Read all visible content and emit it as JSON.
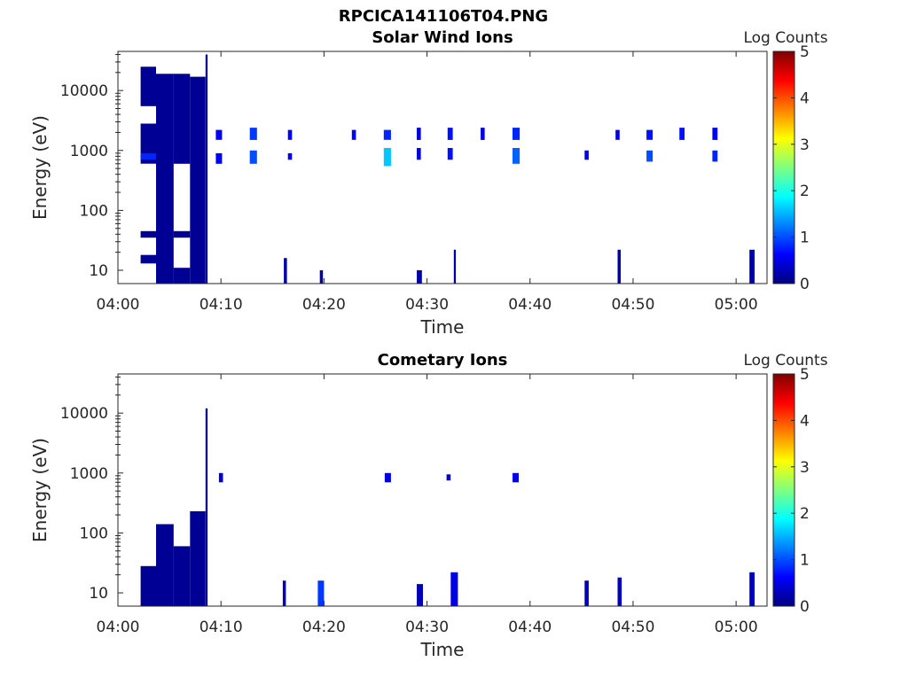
{
  "figure": {
    "suptitle": "RPCICA141106T04.PNG"
  },
  "chart_data": [
    {
      "type": "heatmap",
      "title": "Solar Wind Ions",
      "xlabel": "Time",
      "ylabel": "Energy (eV)",
      "yscale": "log",
      "ylim": [
        6,
        45000
      ],
      "xlim_minutes": [
        0,
        63
      ],
      "xticks": [
        "04:00",
        "04:10",
        "04:20",
        "04:30",
        "04:40",
        "04:50",
        "05:00"
      ],
      "yticks": [
        "10",
        "100",
        "1000",
        "10000"
      ],
      "ytick_values": [
        10,
        100,
        1000,
        10000
      ],
      "colorbar": {
        "label": "Log Counts",
        "range": [
          0,
          5
        ],
        "ticks": [
          "0",
          "1",
          "2",
          "3",
          "4",
          "5"
        ],
        "colormap": "jet"
      },
      "grid": false,
      "blocks": [
        {
          "t0": 2.2,
          "t1": 3.7,
          "e0": 5500,
          "e1": 25000,
          "level": 0.1
        },
        {
          "t0": 2.2,
          "t1": 3.7,
          "e0": 600,
          "e1": 2800,
          "level": 0.1
        },
        {
          "t0": 2.2,
          "t1": 3.7,
          "e0": 35,
          "e1": 45,
          "level": 0.1
        },
        {
          "t0": 2.2,
          "t1": 3.7,
          "e0": 13,
          "e1": 18,
          "level": 0.1
        },
        {
          "t0": 2.2,
          "t1": 3.7,
          "e0": 700,
          "e1": 900,
          "level": 0.8
        },
        {
          "t0": 3.7,
          "t1": 5.4,
          "e0": 6,
          "e1": 19000,
          "level": 0.1
        },
        {
          "t0": 5.4,
          "t1": 7.0,
          "e0": 6,
          "e1": 11,
          "level": 0.1
        },
        {
          "t0": 5.4,
          "t1": 7.0,
          "e0": 35,
          "e1": 45,
          "level": 0.1
        },
        {
          "t0": 5.4,
          "t1": 7.0,
          "e0": 600,
          "e1": 19000,
          "level": 0.1
        },
        {
          "t0": 7.0,
          "t1": 8.5,
          "e0": 6,
          "e1": 17000,
          "level": 0.1
        },
        {
          "t0": 8.5,
          "t1": 8.7,
          "e0": 6,
          "e1": 40000,
          "level": 0.1
        },
        {
          "t0": 9.5,
          "t1": 10.1,
          "e0": 1500,
          "e1": 2200,
          "level": 0.6
        },
        {
          "t0": 9.5,
          "t1": 10.1,
          "e0": 600,
          "e1": 900,
          "level": 0.6
        },
        {
          "t0": 12.8,
          "t1": 13.5,
          "e0": 1500,
          "e1": 2400,
          "level": 0.9
        },
        {
          "t0": 12.8,
          "t1": 13.5,
          "e0": 600,
          "e1": 1000,
          "level": 1.0
        },
        {
          "t0": 16.5,
          "t1": 16.9,
          "e0": 1500,
          "e1": 2200,
          "level": 0.6
        },
        {
          "t0": 16.5,
          "t1": 16.9,
          "e0": 700,
          "e1": 900,
          "level": 0.6
        },
        {
          "t0": 22.7,
          "t1": 23.1,
          "e0": 1500,
          "e1": 2200,
          "level": 0.6
        },
        {
          "t0": 25.8,
          "t1": 26.5,
          "e0": 1500,
          "e1": 2200,
          "level": 0.8
        },
        {
          "t0": 25.8,
          "t1": 26.5,
          "e0": 550,
          "e1": 1100,
          "level": 1.6
        },
        {
          "t0": 29.0,
          "t1": 29.4,
          "e0": 1500,
          "e1": 2400,
          "level": 0.5
        },
        {
          "t0": 29.0,
          "t1": 29.4,
          "e0": 700,
          "e1": 1100,
          "level": 0.5
        },
        {
          "t0": 32.0,
          "t1": 32.5,
          "e0": 1500,
          "e1": 2400,
          "level": 0.7
        },
        {
          "t0": 32.0,
          "t1": 32.5,
          "e0": 700,
          "e1": 1100,
          "level": 0.7
        },
        {
          "t0": 35.2,
          "t1": 35.6,
          "e0": 1500,
          "e1": 2400,
          "level": 0.5
        },
        {
          "t0": 38.3,
          "t1": 39.0,
          "e0": 1500,
          "e1": 2400,
          "level": 0.8
        },
        {
          "t0": 38.3,
          "t1": 39.0,
          "e0": 600,
          "e1": 1100,
          "level": 1.1
        },
        {
          "t0": 45.3,
          "t1": 45.7,
          "e0": 700,
          "e1": 1000,
          "level": 0.5
        },
        {
          "t0": 48.3,
          "t1": 48.7,
          "e0": 1500,
          "e1": 2200,
          "level": 0.5
        },
        {
          "t0": 51.3,
          "t1": 51.9,
          "e0": 1500,
          "e1": 2200,
          "level": 0.7
        },
        {
          "t0": 51.3,
          "t1": 51.9,
          "e0": 650,
          "e1": 1000,
          "level": 1.0
        },
        {
          "t0": 54.5,
          "t1": 55.0,
          "e0": 1500,
          "e1": 2400,
          "level": 0.7
        },
        {
          "t0": 57.7,
          "t1": 58.2,
          "e0": 1500,
          "e1": 2400,
          "level": 0.6
        },
        {
          "t0": 57.7,
          "t1": 58.2,
          "e0": 650,
          "e1": 1000,
          "level": 0.8
        },
        {
          "t0": 16.1,
          "t1": 16.4,
          "e0": 6,
          "e1": 16,
          "level": 0.2
        },
        {
          "t0": 19.6,
          "t1": 19.9,
          "e0": 6,
          "e1": 10,
          "level": 0.2
        },
        {
          "t0": 29.0,
          "t1": 29.5,
          "e0": 6,
          "e1": 10,
          "level": 0.2
        },
        {
          "t0": 32.6,
          "t1": 32.8,
          "e0": 6,
          "e1": 22,
          "level": 0.2
        },
        {
          "t0": 48.5,
          "t1": 48.8,
          "e0": 6,
          "e1": 22,
          "level": 0.2
        },
        {
          "t0": 61.3,
          "t1": 61.8,
          "e0": 6,
          "e1": 22,
          "level": 0.2
        }
      ]
    },
    {
      "type": "heatmap",
      "title": "Cometary Ions",
      "xlabel": "Time",
      "ylabel": "Energy (eV)",
      "yscale": "log",
      "ylim": [
        6,
        45000
      ],
      "xlim_minutes": [
        0,
        63
      ],
      "xticks": [
        "04:00",
        "04:10",
        "04:20",
        "04:30",
        "04:40",
        "04:50",
        "05:00"
      ],
      "yticks": [
        "10",
        "100",
        "1000",
        "10000"
      ],
      "ytick_values": [
        10,
        100,
        1000,
        10000
      ],
      "colorbar": {
        "label": "Log Counts",
        "range": [
          0,
          5
        ],
        "ticks": [
          "0",
          "1",
          "2",
          "3",
          "4",
          "5"
        ],
        "colormap": "jet"
      },
      "grid": false,
      "blocks": [
        {
          "t0": 2.2,
          "t1": 3.7,
          "e0": 6,
          "e1": 28,
          "level": 0.1
        },
        {
          "t0": 3.7,
          "t1": 5.4,
          "e0": 6,
          "e1": 140,
          "level": 0.1
        },
        {
          "t0": 5.4,
          "t1": 7.0,
          "e0": 6,
          "e1": 60,
          "level": 0.1
        },
        {
          "t0": 7.0,
          "t1": 8.5,
          "e0": 6,
          "e1": 230,
          "level": 0.1
        },
        {
          "t0": 8.5,
          "t1": 8.7,
          "e0": 6,
          "e1": 12000,
          "level": 0.1
        },
        {
          "t0": 9.8,
          "t1": 10.2,
          "e0": 700,
          "e1": 1000,
          "level": 0.4
        },
        {
          "t0": 25.9,
          "t1": 26.5,
          "e0": 700,
          "e1": 1000,
          "level": 0.5
        },
        {
          "t0": 31.9,
          "t1": 32.3,
          "e0": 750,
          "e1": 950,
          "level": 0.4
        },
        {
          "t0": 38.3,
          "t1": 38.9,
          "e0": 700,
          "e1": 1000,
          "level": 0.5
        },
        {
          "t0": 16.0,
          "t1": 16.3,
          "e0": 6,
          "e1": 16,
          "level": 0.3
        },
        {
          "t0": 19.4,
          "t1": 20.0,
          "e0": 6,
          "e1": 16,
          "level": 0.9
        },
        {
          "t0": 29.0,
          "t1": 29.6,
          "e0": 6,
          "e1": 14,
          "level": 0.3
        },
        {
          "t0": 32.3,
          "t1": 33.0,
          "e0": 6,
          "e1": 22,
          "level": 0.5
        },
        {
          "t0": 45.3,
          "t1": 45.7,
          "e0": 6,
          "e1": 16,
          "level": 0.3
        },
        {
          "t0": 48.5,
          "t1": 48.9,
          "e0": 6,
          "e1": 18,
          "level": 0.3
        },
        {
          "t0": 61.3,
          "t1": 61.8,
          "e0": 6,
          "e1": 22,
          "level": 0.3
        }
      ]
    }
  ]
}
